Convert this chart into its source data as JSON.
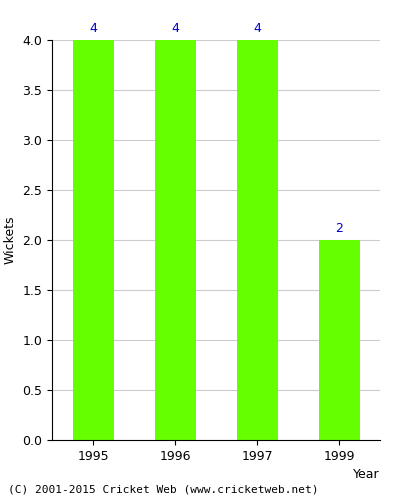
{
  "years": [
    "1995",
    "1996",
    "1997",
    "1999"
  ],
  "values": [
    4,
    4,
    4,
    2
  ],
  "bar_color": "#66ff00",
  "bar_edge_color": "#66ff00",
  "xlabel": "Year",
  "ylabel": "Wickets",
  "ylim": [
    0,
    4.0
  ],
  "yticks": [
    0.0,
    0.5,
    1.0,
    1.5,
    2.0,
    2.5,
    3.0,
    3.5,
    4.0
  ],
  "label_color": "#0000cc",
  "label_fontsize": 9,
  "axis_fontsize": 9,
  "tick_fontsize": 9,
  "footer_text": "(C) 2001-2015 Cricket Web (www.cricketweb.net)",
  "footer_fontsize": 8,
  "background_color": "#ffffff",
  "grid_color": "#cccccc",
  "bar_width": 0.5
}
